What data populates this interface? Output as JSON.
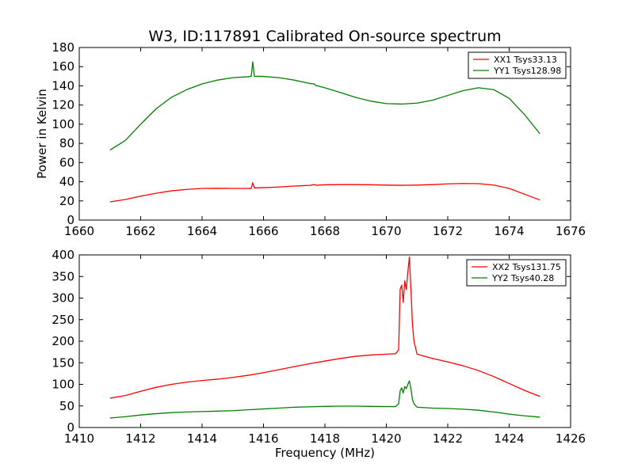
{
  "title": "W3, ID:117891 Calibrated On-source spectrum",
  "chart_data": [
    {
      "type": "line",
      "xlabel": "",
      "ylabel": "Power in Kelvin",
      "xlim": [
        1660,
        1676
      ],
      "ylim": [
        0,
        180
      ],
      "xticks": [
        "1660",
        "1662",
        "1664",
        "1666",
        "1668",
        "1670",
        "1672",
        "1674",
        "1676"
      ],
      "yticks": [
        "0",
        "20",
        "40",
        "60",
        "80",
        "100",
        "120",
        "140",
        "160",
        "180"
      ],
      "legend": "top-right",
      "series": [
        {
          "name": "XX1 Tsys33.13",
          "color": "#ff0000",
          "points": [
            [
              1661.0,
              19
            ],
            [
              1661.5,
              21.5
            ],
            [
              1662.0,
              25
            ],
            [
              1662.5,
              28
            ],
            [
              1663.0,
              30.5
            ],
            [
              1663.5,
              32
            ],
            [
              1664.0,
              33
            ],
            [
              1664.5,
              33.2
            ],
            [
              1665.0,
              33
            ],
            [
              1665.5,
              33
            ],
            [
              1665.6,
              33.2
            ],
            [
              1665.65,
              39
            ],
            [
              1665.7,
              33.5
            ],
            [
              1666.0,
              33.8
            ],
            [
              1666.5,
              34.5
            ],
            [
              1667.0,
              35.5
            ],
            [
              1667.5,
              36.2
            ],
            [
              1667.65,
              37
            ],
            [
              1667.7,
              36.4
            ],
            [
              1668.0,
              36.8
            ],
            [
              1668.5,
              37
            ],
            [
              1669.0,
              37
            ],
            [
              1669.5,
              36.8
            ],
            [
              1670.0,
              36.5
            ],
            [
              1670.5,
              36.3
            ],
            [
              1671.0,
              36.5
            ],
            [
              1671.5,
              37
            ],
            [
              1672.0,
              37.8
            ],
            [
              1672.5,
              38.2
            ],
            [
              1673.0,
              38
            ],
            [
              1673.5,
              36.5
            ],
            [
              1674.0,
              33
            ],
            [
              1674.5,
              27
            ],
            [
              1675.0,
              21
            ]
          ]
        },
        {
          "name": "YY1 Tsys128.98",
          "color": "#008000",
          "points": [
            [
              1661.0,
              73
            ],
            [
              1661.5,
              83
            ],
            [
              1662.0,
              100
            ],
            [
              1662.5,
              116
            ],
            [
              1663.0,
              128
            ],
            [
              1663.5,
              136
            ],
            [
              1664.0,
              142
            ],
            [
              1664.5,
              146
            ],
            [
              1665.0,
              148.5
            ],
            [
              1665.5,
              149.5
            ],
            [
              1665.6,
              150
            ],
            [
              1665.65,
              165
            ],
            [
              1665.7,
              150
            ],
            [
              1666.0,
              149.8
            ],
            [
              1666.5,
              148.5
            ],
            [
              1667.0,
              146
            ],
            [
              1667.5,
              142.5
            ],
            [
              1667.65,
              142
            ],
            [
              1667.7,
              140.5
            ],
            [
              1668.0,
              138
            ],
            [
              1668.5,
              133
            ],
            [
              1669.0,
              128
            ],
            [
              1669.5,
              124
            ],
            [
              1670.0,
              121.5
            ],
            [
              1670.5,
              121
            ],
            [
              1671.0,
              122
            ],
            [
              1671.5,
              125
            ],
            [
              1672.0,
              130
            ],
            [
              1672.5,
              135
            ],
            [
              1673.0,
              138
            ],
            [
              1673.5,
              136
            ],
            [
              1674.0,
              127
            ],
            [
              1674.5,
              110
            ],
            [
              1675.0,
              90
            ]
          ]
        }
      ]
    },
    {
      "type": "line",
      "xlabel": "Frequency (MHz)",
      "ylabel": "",
      "xlim": [
        1410,
        1426
      ],
      "ylim": [
        0,
        400
      ],
      "xticks": [
        "1410",
        "1412",
        "1414",
        "1416",
        "1418",
        "1420",
        "1422",
        "1424",
        "1426"
      ],
      "yticks": [
        "0",
        "50",
        "100",
        "150",
        "200",
        "250",
        "300",
        "350",
        "400"
      ],
      "legend": "top-right",
      "series": [
        {
          "name": "XX2 Tsys131.75",
          "color": "#ff0000",
          "points": [
            [
              1411.0,
              68
            ],
            [
              1411.5,
              74
            ],
            [
              1412.0,
              84
            ],
            [
              1412.5,
              93
            ],
            [
              1413.0,
              100
            ],
            [
              1413.5,
              105
            ],
            [
              1414.0,
              109
            ],
            [
              1414.5,
              112
            ],
            [
              1415.0,
              116
            ],
            [
              1415.5,
              121
            ],
            [
              1416.0,
              127
            ],
            [
              1416.5,
              134
            ],
            [
              1417.0,
              141
            ],
            [
              1417.5,
              148
            ],
            [
              1418.0,
              154
            ],
            [
              1418.5,
              160
            ],
            [
              1419.0,
              165
            ],
            [
              1419.5,
              168
            ],
            [
              1420.0,
              170
            ],
            [
              1420.3,
              171
            ],
            [
              1420.4,
              180
            ],
            [
              1420.45,
              320
            ],
            [
              1420.5,
              330
            ],
            [
              1420.55,
              290
            ],
            [
              1420.6,
              340
            ],
            [
              1420.65,
              320
            ],
            [
              1420.7,
              360
            ],
            [
              1420.75,
              395
            ],
            [
              1420.8,
              320
            ],
            [
              1420.85,
              240
            ],
            [
              1420.9,
              200
            ],
            [
              1421.0,
              170
            ],
            [
              1421.5,
              160
            ],
            [
              1422.0,
              152
            ],
            [
              1422.5,
              143
            ],
            [
              1423.0,
              132
            ],
            [
              1423.5,
              118
            ],
            [
              1424.0,
              102
            ],
            [
              1424.5,
              86
            ],
            [
              1425.0,
              72
            ]
          ]
        },
        {
          "name": "YY2 Tsys40.28",
          "color": "#008000",
          "points": [
            [
              1411.0,
              22
            ],
            [
              1411.5,
              25
            ],
            [
              1412.0,
              29
            ],
            [
              1412.5,
              32
            ],
            [
              1413.0,
              34.5
            ],
            [
              1413.5,
              36
            ],
            [
              1414.0,
              37
            ],
            [
              1414.5,
              38
            ],
            [
              1415.0,
              39
            ],
            [
              1415.5,
              41
            ],
            [
              1416.0,
              43
            ],
            [
              1416.5,
              45
            ],
            [
              1417.0,
              47
            ],
            [
              1417.5,
              48
            ],
            [
              1418.0,
              49
            ],
            [
              1418.5,
              49.5
            ],
            [
              1419.0,
              49.5
            ],
            [
              1419.5,
              49
            ],
            [
              1420.0,
              48.5
            ],
            [
              1420.3,
              48.5
            ],
            [
              1420.4,
              55
            ],
            [
              1420.45,
              85
            ],
            [
              1420.5,
              92
            ],
            [
              1420.55,
              80
            ],
            [
              1420.6,
              95
            ],
            [
              1420.65,
              90
            ],
            [
              1420.7,
              100
            ],
            [
              1420.75,
              108
            ],
            [
              1420.8,
              90
            ],
            [
              1420.85,
              65
            ],
            [
              1420.9,
              55
            ],
            [
              1421.0,
              47
            ],
            [
              1421.5,
              45
            ],
            [
              1422.0,
              44
            ],
            [
              1422.5,
              42.5
            ],
            [
              1423.0,
              40
            ],
            [
              1423.5,
              36
            ],
            [
              1424.0,
              31
            ],
            [
              1424.5,
              27
            ],
            [
              1425.0,
              24
            ]
          ]
        }
      ]
    }
  ]
}
